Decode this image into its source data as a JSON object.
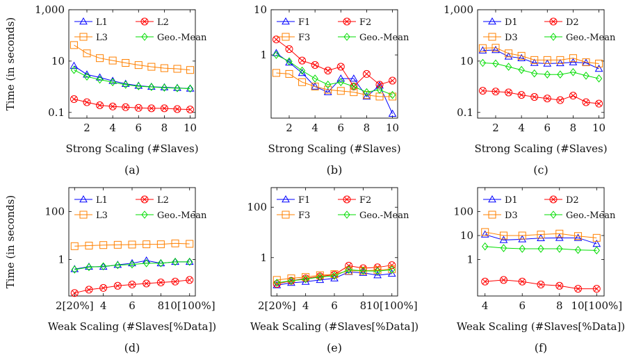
{
  "figure": {
    "y_label": "Time (in seconds)"
  },
  "chart_data": [
    {
      "type": "line",
      "panel": "a",
      "caption": "(a)",
      "xlabel": "Strong Scaling (#Slaves)",
      "ylabel": "Time (in seconds)",
      "yscale": "log",
      "ylim": [
        0.06,
        1000
      ],
      "yticks": [
        0.1,
        10,
        1000
      ],
      "yticklabels": [
        "0.1",
        "10",
        "1,000"
      ],
      "xlim": [
        0.6,
        10.4
      ],
      "xticks": [
        2,
        4,
        6,
        8,
        10
      ],
      "xticklabels": [
        "2",
        "4",
        "6",
        "8",
        "10"
      ],
      "legend_position": "top",
      "legend_order": [
        "L1",
        "L2",
        "L3",
        "Geo.-Mean"
      ],
      "x": [
        1,
        2,
        3,
        4,
        5,
        6,
        7,
        8,
        9,
        10
      ],
      "series": [
        {
          "name": "L1",
          "color": "#0000ff",
          "marker": "triangle",
          "values": [
            6.5,
            3.0,
            2.3,
            1.7,
            1.3,
            1.1,
            1.0,
            0.95,
            0.9,
            0.85
          ]
        },
        {
          "name": "L2",
          "color": "#ff0000",
          "marker": "circle-x",
          "values": [
            0.33,
            0.25,
            0.19,
            0.17,
            0.16,
            0.15,
            0.145,
            0.145,
            0.135,
            0.13
          ]
        },
        {
          "name": "L3",
          "color": "#ff8000",
          "marker": "square",
          "values": [
            42,
            20,
            13,
            10.5,
            8.5,
            7.0,
            6.0,
            5.3,
            5.0,
            4.5
          ]
        },
        {
          "name": "Geo.-Mean",
          "color": "#00dd00",
          "marker": "diamond",
          "values": [
            4.5,
            2.5,
            1.9,
            1.5,
            1.2,
            1.05,
            0.98,
            0.92,
            0.88,
            0.85
          ]
        }
      ]
    },
    {
      "type": "line",
      "panel": "b",
      "caption": "(b)",
      "xlabel": "Strong Scaling (#Slaves)",
      "ylabel": "",
      "yscale": "log",
      "ylim": [
        0.04,
        10
      ],
      "yticks": [
        1,
        10
      ],
      "yticklabels": [
        "1",
        "10"
      ],
      "xlim": [
        0.6,
        10.4
      ],
      "xticks": [
        2,
        4,
        6,
        8,
        10
      ],
      "xticklabels": [
        "2",
        "4",
        "6",
        "8",
        "10"
      ],
      "legend_position": "top",
      "legend_order": [
        "F1",
        "F2",
        "F3",
        "Geo.-Mean"
      ],
      "x": [
        1,
        2,
        3,
        4,
        5,
        6,
        7,
        8,
        9,
        10
      ],
      "series": [
        {
          "name": "F1",
          "color": "#0000ff",
          "marker": "triangle",
          "values": [
            1.1,
            0.68,
            0.4,
            0.2,
            0.15,
            0.3,
            0.3,
            0.12,
            0.21,
            0.05
          ]
        },
        {
          "name": "F2",
          "color": "#ff0000",
          "marker": "circle-x",
          "values": [
            2.2,
            1.35,
            0.75,
            0.6,
            0.45,
            0.55,
            0.2,
            0.38,
            0.22,
            0.27
          ]
        },
        {
          "name": "F3",
          "color": "#ff8000",
          "marker": "square",
          "values": [
            0.4,
            0.38,
            0.25,
            0.2,
            0.17,
            0.16,
            0.15,
            0.13,
            0.12,
            0.12
          ]
        },
        {
          "name": "Geo.-Mean",
          "color": "#00dd00",
          "marker": "diamond",
          "values": [
            1.0,
            0.72,
            0.45,
            0.3,
            0.22,
            0.25,
            0.2,
            0.15,
            0.17,
            0.13
          ]
        }
      ]
    },
    {
      "type": "line",
      "panel": "c",
      "caption": "(c)",
      "xlabel": "Strong Scaling (#Slaves)",
      "ylabel": "",
      "yscale": "log",
      "ylim": [
        0.06,
        1000
      ],
      "yticks": [
        0.1,
        10,
        1000
      ],
      "yticklabels": [
        "0.1",
        "10",
        "1,000"
      ],
      "xlim": [
        0.6,
        10.4
      ],
      "xticks": [
        2,
        4,
        6,
        8,
        10
      ],
      "xticklabels": [
        "2",
        "4",
        "6",
        "8",
        "10"
      ],
      "legend_position": "top",
      "legend_order": [
        "D1",
        "D2",
        "D3",
        "Geo.-Mean"
      ],
      "x": [
        1,
        2,
        3,
        4,
        5,
        6,
        7,
        8,
        9,
        10
      ],
      "series": [
        {
          "name": "D1",
          "color": "#0000ff",
          "marker": "triangle",
          "values": [
            26,
            27,
            15,
            13,
            8.5,
            8.0,
            8.3,
            9.0,
            8.5,
            5.0
          ]
        },
        {
          "name": "D2",
          "color": "#ff0000",
          "marker": "circle-x",
          "values": [
            0.7,
            0.65,
            0.6,
            0.48,
            0.4,
            0.35,
            0.3,
            0.45,
            0.25,
            0.22
          ]
        },
        {
          "name": "D3",
          "color": "#ff8000",
          "marker": "square",
          "values": [
            32,
            33,
            20,
            16,
            11,
            11,
            11,
            13,
            9.0,
            8.0
          ]
        },
        {
          "name": "Geo.-Mean",
          "color": "#00dd00",
          "marker": "diamond",
          "values": [
            8.5,
            8.0,
            6.0,
            4.5,
            3.3,
            3.0,
            3.0,
            3.7,
            2.7,
            2.1
          ]
        }
      ]
    },
    {
      "type": "line",
      "panel": "d",
      "caption": "(d)",
      "xlabel": "Weak Scaling (#Slaves[%Data])",
      "ylabel": "Time (in seconds)",
      "yscale": "log",
      "ylim": [
        0.03,
        1000
      ],
      "yticks": [
        1,
        100
      ],
      "yticklabels": [
        "1",
        "100"
      ],
      "xlim": [
        1.6,
        10.4
      ],
      "xticks": [
        2,
        4,
        6,
        8,
        10
      ],
      "xticklabels": [
        "2[20%]",
        "4",
        "6",
        "8",
        "10[100%]"
      ],
      "legend_position": "top",
      "legend_order": [
        "L1",
        "L2",
        "L3",
        "Geo.-Mean"
      ],
      "x": [
        2,
        3,
        4,
        5,
        6,
        7,
        8,
        9,
        10
      ],
      "series": [
        {
          "name": "L1",
          "color": "#0000ff",
          "marker": "triangle",
          "values": [
            0.4,
            0.5,
            0.5,
            0.6,
            0.7,
            0.9,
            0.7,
            0.8,
            0.8
          ]
        },
        {
          "name": "L2",
          "color": "#ff0000",
          "marker": "circle-x",
          "values": [
            0.04,
            0.055,
            0.065,
            0.08,
            0.09,
            0.1,
            0.11,
            0.12,
            0.14
          ]
        },
        {
          "name": "L3",
          "color": "#ff8000",
          "marker": "square",
          "values": [
            3.6,
            3.8,
            4.0,
            4.1,
            4.2,
            4.3,
            4.3,
            4.7,
            4.5
          ]
        },
        {
          "name": "Geo.-Mean",
          "color": "#00dd00",
          "marker": "diamond",
          "values": [
            0.38,
            0.48,
            0.52,
            0.58,
            0.62,
            0.7,
            0.7,
            0.8,
            0.8
          ]
        }
      ]
    },
    {
      "type": "line",
      "panel": "e",
      "caption": "(e)",
      "xlabel": "Weak Scaling (#Slaves[%Data])",
      "ylabel": "",
      "yscale": "log",
      "ylim": [
        0.03,
        600
      ],
      "yticks": [
        1,
        100
      ],
      "yticklabels": [
        "1",
        "100"
      ],
      "xlim": [
        1.6,
        10.4
      ],
      "xticks": [
        2,
        4,
        6,
        8,
        10
      ],
      "xticklabels": [
        "2[20%]",
        "4",
        "6",
        "8",
        "10[100%]"
      ],
      "legend_position": "top",
      "legend_order": [
        "F1",
        "F2",
        "F3",
        "Geo.-Mean"
      ],
      "x": [
        2,
        3,
        4,
        5,
        6,
        7,
        8,
        9,
        10
      ],
      "series": [
        {
          "name": "F1",
          "color": "#0000ff",
          "marker": "triangle",
          "values": [
            0.08,
            0.1,
            0.11,
            0.13,
            0.15,
            0.27,
            0.25,
            0.2,
            0.23
          ]
        },
        {
          "name": "F2",
          "color": "#ff0000",
          "marker": "circle-x",
          "values": [
            0.09,
            0.12,
            0.15,
            0.18,
            0.21,
            0.48,
            0.38,
            0.41,
            0.5
          ]
        },
        {
          "name": "F3",
          "color": "#ff8000",
          "marker": "square",
          "values": [
            0.13,
            0.15,
            0.17,
            0.2,
            0.22,
            0.3,
            0.3,
            0.32,
            0.35
          ]
        },
        {
          "name": "Geo.-Mean",
          "color": "#00dd00",
          "marker": "diamond",
          "values": [
            0.1,
            0.12,
            0.14,
            0.17,
            0.19,
            0.33,
            0.3,
            0.29,
            0.33
          ]
        }
      ]
    },
    {
      "type": "line",
      "panel": "f",
      "caption": "(f)",
      "xlabel": "Weak Scaling (#Slaves[%Data])",
      "ylabel": "",
      "yscale": "log",
      "ylim": [
        0.03,
        1000
      ],
      "yticks": [
        1,
        10,
        100
      ],
      "yticklabels": [
        "1",
        "10",
        "100"
      ],
      "xlim": [
        3.6,
        10.4
      ],
      "xticks": [
        4,
        6,
        8,
        10
      ],
      "xticklabels": [
        "4",
        "6",
        "8",
        "10[100%]"
      ],
      "legend_position": "top",
      "legend_order": [
        "D1",
        "D2",
        "D3",
        "Geo.-Mean"
      ],
      "x": [
        4,
        5,
        6,
        7,
        8,
        9,
        10
      ],
      "series": [
        {
          "name": "D1",
          "color": "#0000ff",
          "marker": "triangle",
          "values": [
            11,
            6.5,
            7.0,
            7.8,
            8.0,
            8.0,
            4.5
          ]
        },
        {
          "name": "D2",
          "color": "#ff0000",
          "marker": "circle-x",
          "values": [
            0.12,
            0.14,
            0.12,
            0.09,
            0.08,
            0.06,
            0.06
          ]
        },
        {
          "name": "D3",
          "color": "#ff8000",
          "marker": "square",
          "values": [
            14,
            10,
            10,
            11,
            12,
            9.5,
            8.0
          ]
        },
        {
          "name": "Geo.-Mean",
          "color": "#00dd00",
          "marker": "diamond",
          "values": [
            3.5,
            3.0,
            2.8,
            2.8,
            2.8,
            2.5,
            2.4
          ]
        }
      ]
    }
  ]
}
